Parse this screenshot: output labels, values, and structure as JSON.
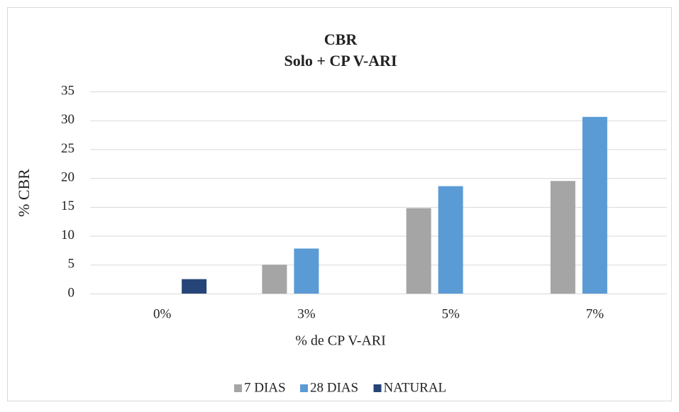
{
  "chart_data": {
    "type": "bar",
    "title": "CBR",
    "subtitle": "Solo + CP V-ARI",
    "x_label": "% de CP V-ARI",
    "y_label": "% CBR",
    "categories": [
      "0%",
      "3%",
      "5%",
      "7%"
    ],
    "series": [
      {
        "name": "7 DIAS",
        "color": "#a5a5a5",
        "values": [
          null,
          5,
          14.8,
          19.5
        ]
      },
      {
        "name": "28 DIAS",
        "color": "#5b9bd5",
        "values": [
          null,
          7.8,
          18.6,
          30.6
        ]
      },
      {
        "name": "NATURAL",
        "color": "#264478",
        "values": [
          2.5,
          null,
          null,
          null
        ]
      }
    ],
    "ylim": [
      0,
      35
    ],
    "yticks": [
      0,
      5,
      10,
      15,
      20,
      25,
      30,
      35
    ],
    "grid": true,
    "legend": "bottom"
  }
}
